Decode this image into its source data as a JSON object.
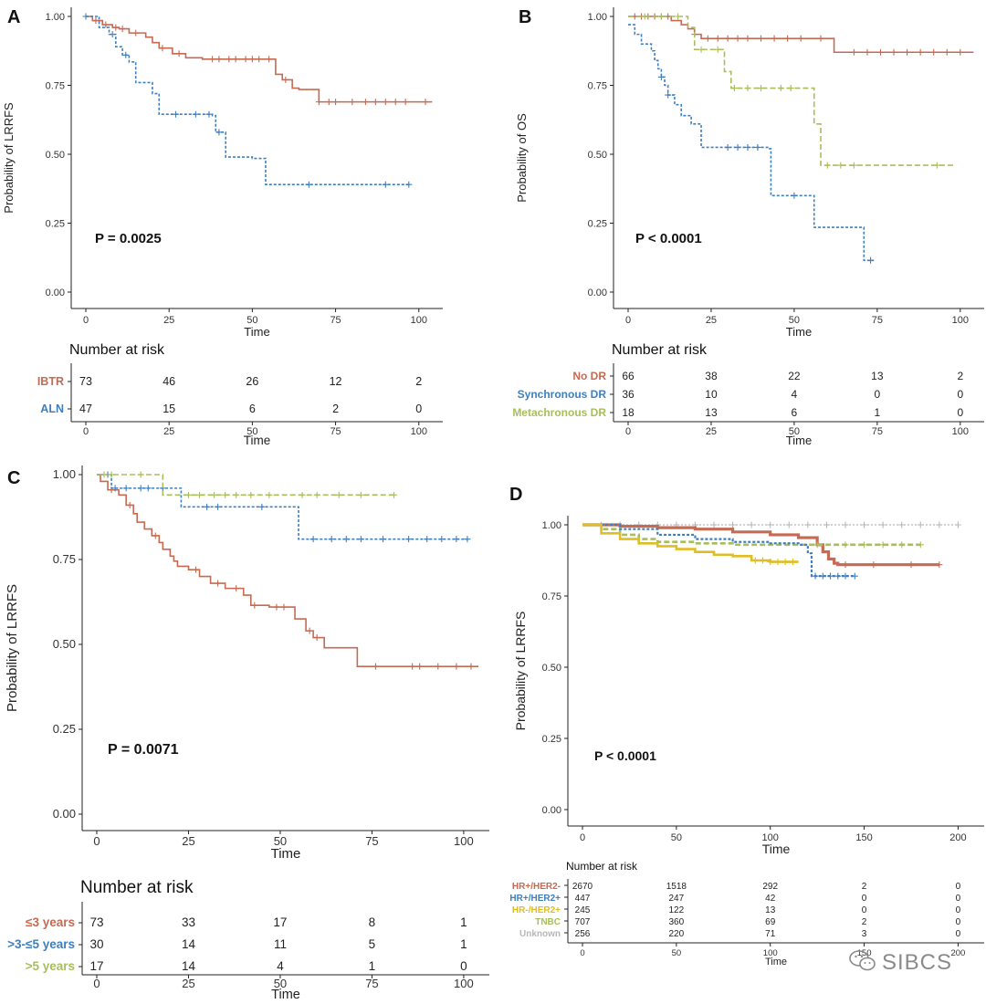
{
  "colors": {
    "red": "#c56a53",
    "blue": "#3f7fc0",
    "green": "#a8be5b",
    "yellow": "#e1bd24",
    "gray": "#b8b8b8",
    "axis": "#222222"
  },
  "watermark": {
    "text": "SIBCS",
    "icon": "wechat-icon"
  },
  "chart_data": [
    {
      "panel": "A",
      "type": "line",
      "step": true,
      "xlabel": "Time",
      "ylabel": "Probability of LRRFS",
      "xlim": [
        0,
        105
      ],
      "ylim": [
        0,
        1
      ],
      "xticks": [
        0,
        25,
        50,
        75,
        100
      ],
      "yticks": [
        "0.00",
        "0.25",
        "0.50",
        "0.75",
        "1.00"
      ],
      "pvalue": "P = 0.0025",
      "series": [
        {
          "name": "IBTR",
          "color": "red",
          "dash": "",
          "x": [
            0,
            2,
            5,
            8,
            10,
            13,
            18,
            20,
            22,
            26,
            30,
            35,
            57,
            59,
            62,
            64,
            70,
            104
          ],
          "y": [
            1.0,
            0.985,
            0.97,
            0.96,
            0.955,
            0.94,
            0.925,
            0.905,
            0.885,
            0.865,
            0.85,
            0.845,
            0.79,
            0.77,
            0.74,
            0.735,
            0.69,
            0.69
          ],
          "censor": [
            3,
            6,
            9,
            11,
            15,
            23,
            28,
            38,
            40,
            43,
            45,
            48,
            50,
            52,
            55,
            60,
            70,
            73,
            75,
            80,
            84,
            87,
            90,
            93,
            96,
            102
          ]
        },
        {
          "name": "ALN",
          "color": "blue",
          "dash": "3,2",
          "x": [
            0,
            4,
            7,
            9,
            11,
            13,
            15,
            20,
            22,
            38,
            39,
            42,
            50,
            54,
            97
          ],
          "y": [
            1.0,
            0.96,
            0.935,
            0.89,
            0.86,
            0.835,
            0.76,
            0.72,
            0.645,
            0.64,
            0.58,
            0.49,
            0.485,
            0.39,
            0.39
          ],
          "censor": [
            0,
            8,
            12,
            27,
            33,
            37,
            40,
            67,
            90,
            97
          ]
        }
      ],
      "risk": {
        "title": "Number at risk",
        "times": [
          0,
          25,
          50,
          75,
          100
        ],
        "rows": [
          {
            "label": "IBTR",
            "color": "red",
            "values": [
              "73",
              "46",
              "26",
              "12",
              "2"
            ]
          },
          {
            "label": "ALN",
            "color": "blue",
            "values": [
              "47",
              "15",
              "6",
              "2",
              "0"
            ]
          }
        ],
        "xlabel": "Time"
      }
    },
    {
      "panel": "B",
      "type": "line",
      "step": true,
      "xlabel": "Time",
      "ylabel": "Probability of OS",
      "xlim": [
        0,
        105
      ],
      "ylim": [
        0,
        1
      ],
      "xticks": [
        0,
        25,
        50,
        75,
        100
      ],
      "yticks": [
        "0.00",
        "0.25",
        "0.50",
        "0.75",
        "1.00"
      ],
      "pvalue": "P < 0.0001",
      "series": [
        {
          "name": "No DR",
          "color": "red",
          "dash": "",
          "x": [
            0,
            13,
            16,
            18,
            20,
            22,
            62,
            104
          ],
          "y": [
            1.0,
            0.985,
            0.97,
            0.955,
            0.935,
            0.92,
            0.87,
            0.87
          ],
          "censor": [
            2,
            4,
            6,
            8,
            10,
            12,
            20,
            24,
            27,
            30,
            33,
            36,
            40,
            44,
            48,
            52,
            58,
            68,
            72,
            76,
            80,
            84,
            88,
            92,
            96,
            100
          ]
        },
        {
          "name": "Synchronous DR",
          "color": "blue",
          "dash": "3,2",
          "x": [
            0,
            2,
            4,
            7,
            8,
            9,
            10,
            11,
            12,
            14,
            16,
            19,
            22,
            42,
            43,
            56,
            71,
            74
          ],
          "y": [
            0.97,
            0.935,
            0.9,
            0.875,
            0.84,
            0.81,
            0.78,
            0.75,
            0.715,
            0.68,
            0.64,
            0.61,
            0.525,
            0.52,
            0.35,
            0.235,
            0.115,
            0.115
          ],
          "censor": [
            10,
            12,
            30,
            33,
            36,
            39,
            50,
            73
          ]
        },
        {
          "name": "Metachronous DR",
          "color": "green",
          "dash": "6,3",
          "x": [
            0,
            18,
            20,
            29,
            31,
            53,
            56,
            58,
            98
          ],
          "y": [
            1.0,
            0.96,
            0.88,
            0.8,
            0.74,
            0.74,
            0.61,
            0.46,
            0.46
          ],
          "censor": [
            5,
            10,
            15,
            22,
            27,
            32,
            36,
            40,
            46,
            49,
            60,
            64,
            68,
            93
          ]
        }
      ],
      "risk": {
        "title": "Number at risk",
        "times": [
          0,
          25,
          50,
          75,
          100
        ],
        "rows": [
          {
            "label": "No DR",
            "color": "red",
            "values": [
              "66",
              "38",
              "22",
              "13",
              "2"
            ]
          },
          {
            "label": "Synchronous DR",
            "color": "blue",
            "values": [
              "36",
              "10",
              "4",
              "0",
              "0"
            ]
          },
          {
            "label": "Metachronous DR",
            "color": "green",
            "values": [
              "18",
              "13",
              "6",
              "1",
              "0"
            ]
          }
        ],
        "xlabel": "Time"
      }
    },
    {
      "panel": "C",
      "type": "line",
      "step": true,
      "xlabel": "Time",
      "ylabel": "Probability of LRRFS",
      "xlim": [
        0,
        105
      ],
      "ylim": [
        0,
        1
      ],
      "xticks": [
        0,
        25,
        50,
        75,
        100
      ],
      "yticks": [
        "0.00",
        "0.25",
        "0.50",
        "0.75",
        "1.00"
      ],
      "pvalue": "P = 0.0071",
      "series": [
        {
          "name": "≤3 years",
          "color": "red",
          "dash": "",
          "x": [
            0,
            1,
            3,
            6,
            8,
            10,
            11,
            13,
            15,
            17,
            18,
            20,
            21,
            22,
            25,
            28,
            31,
            35,
            40,
            42,
            47,
            54,
            57,
            59,
            62,
            71,
            104
          ],
          "y": [
            1.0,
            0.98,
            0.955,
            0.94,
            0.91,
            0.885,
            0.86,
            0.84,
            0.82,
            0.8,
            0.78,
            0.76,
            0.745,
            0.73,
            0.72,
            0.7,
            0.68,
            0.665,
            0.645,
            0.615,
            0.61,
            0.575,
            0.54,
            0.52,
            0.49,
            0.435,
            0.435
          ],
          "censor": [
            4,
            9,
            16,
            27,
            33,
            38,
            43,
            49,
            51,
            58,
            60,
            76,
            86,
            88,
            93,
            98,
            102
          ]
        },
        {
          "name": ">3-≤5 years",
          "color": "blue",
          "dash": "3,2",
          "x": [
            0,
            4,
            23,
            55,
            101
          ],
          "y": [
            1.0,
            0.96,
            0.905,
            0.81,
            0.81
          ],
          "censor": [
            3,
            5,
            8,
            12,
            14,
            18,
            30,
            33,
            45,
            59,
            64,
            68,
            72,
            78,
            85,
            90,
            94,
            98,
            101
          ]
        },
        {
          "name": ">5 years",
          "color": "green",
          "dash": "6,3",
          "x": [
            0,
            18,
            81
          ],
          "y": [
            1.0,
            0.94,
            0.94
          ],
          "censor": [
            2,
            4,
            12,
            25,
            28,
            32,
            35,
            38,
            42,
            47,
            56,
            60,
            66,
            72,
            81
          ]
        }
      ],
      "risk": {
        "title": "Number at risk",
        "times": [
          0,
          25,
          50,
          75,
          100
        ],
        "rows": [
          {
            "label": "≤3 years",
            "color": "red",
            "values": [
              "73",
              "33",
              "17",
              "8",
              "1"
            ]
          },
          {
            "label": ">3-≤5 years",
            "color": "blue",
            "values": [
              "30",
              "14",
              "11",
              "5",
              "1"
            ]
          },
          {
            "label": ">5 years",
            "color": "green",
            "values": [
              "17",
              "14",
              "4",
              "1",
              "0"
            ]
          }
        ],
        "xlabel": "Time"
      }
    },
    {
      "panel": "D",
      "type": "line",
      "step": true,
      "xlabel": "Time",
      "ylabel": "Probability of LRRFS",
      "xlim": [
        0,
        210
      ],
      "ylim": [
        0,
        1
      ],
      "xticks": [
        0,
        50,
        100,
        150,
        200
      ],
      "yticks": [
        "0.00",
        "0.25",
        "0.50",
        "0.75",
        "1.00"
      ],
      "pvalue": "P < 0.0001",
      "series": [
        {
          "name": "Unknown",
          "color": "gray",
          "dash": "2,2",
          "width": 1.2,
          "x": [
            0,
            200
          ],
          "y": [
            1.0,
            1.0
          ],
          "censor": [
            10,
            20,
            30,
            40,
            50,
            60,
            70,
            80,
            90,
            100,
            110,
            120,
            130,
            140,
            150,
            160,
            170,
            180,
            190,
            200
          ]
        },
        {
          "name": "HR+/HER2-",
          "color": "red",
          "dash": "",
          "width": 3.2,
          "x": [
            0,
            20,
            40,
            60,
            80,
            100,
            115,
            125,
            128,
            131,
            134,
            136,
            140,
            190
          ],
          "y": [
            1.0,
            0.995,
            0.99,
            0.985,
            0.975,
            0.965,
            0.955,
            0.93,
            0.905,
            0.88,
            0.865,
            0.86,
            0.86,
            0.86
          ],
          "censor": [
            140,
            155,
            175,
            190
          ]
        },
        {
          "name": "TNBC",
          "color": "green",
          "dash": "6,3",
          "width": 2.6,
          "x": [
            0,
            10,
            20,
            30,
            40,
            60,
            80,
            100,
            120,
            125,
            180
          ],
          "y": [
            1.0,
            0.985,
            0.965,
            0.95,
            0.94,
            0.935,
            0.93,
            0.93,
            0.93,
            0.93,
            0.93
          ],
          "censor": [
            125,
            140,
            150,
            160,
            170,
            180
          ]
        },
        {
          "name": "HR+/HER2+",
          "color": "blue",
          "dash": "3,2",
          "width": 2.2,
          "x": [
            0,
            20,
            40,
            60,
            80,
            100,
            115,
            120,
            122,
            145
          ],
          "y": [
            1.0,
            0.985,
            0.965,
            0.95,
            0.94,
            0.935,
            0.93,
            0.9,
            0.82,
            0.82
          ],
          "censor": [
            124,
            128,
            132,
            136,
            140,
            145
          ]
        },
        {
          "name": "HR-/HER2+",
          "color": "yellow",
          "dash": "",
          "width": 2.6,
          "x": [
            0,
            10,
            20,
            30,
            40,
            50,
            60,
            70,
            80,
            90,
            100,
            115
          ],
          "y": [
            1.0,
            0.97,
            0.95,
            0.935,
            0.925,
            0.915,
            0.905,
            0.895,
            0.89,
            0.875,
            0.87,
            0.87
          ],
          "censor": [
            92,
            96,
            100,
            104,
            108,
            112
          ]
        }
      ],
      "risk": {
        "title": "Number at risk",
        "times": [
          0,
          50,
          100,
          150,
          200
        ],
        "rows": [
          {
            "label": "HR+/HER2-",
            "color": "red",
            "values": [
              "2670",
              "1518",
              "292",
              "2",
              "0"
            ]
          },
          {
            "label": "HR+/HER2+",
            "color": "blue",
            "values": [
              "447",
              "247",
              "42",
              "0",
              "0"
            ]
          },
          {
            "label": "HR-/HER2+",
            "color": "yellow",
            "values": [
              "245",
              "122",
              "13",
              "0",
              "0"
            ]
          },
          {
            "label": "TNBC",
            "color": "green",
            "values": [
              "707",
              "360",
              "69",
              "2",
              "0"
            ]
          },
          {
            "label": "Unknown",
            "color": "gray",
            "values": [
              "256",
              "220",
              "71",
              "3",
              "0"
            ]
          }
        ],
        "xlabel": "Time"
      }
    }
  ]
}
